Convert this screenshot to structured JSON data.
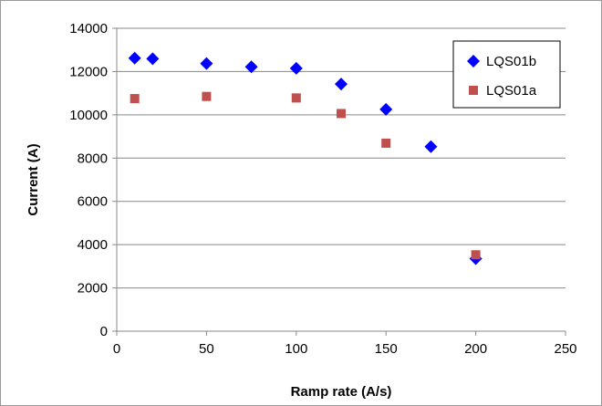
{
  "chart_data": {
    "type": "scatter",
    "title": "",
    "xlabel": "Ramp rate (A/s)",
    "ylabel": "Current (A)",
    "xlim": [
      0,
      250
    ],
    "ylim": [
      0,
      14000
    ],
    "xticks": [
      0,
      50,
      100,
      150,
      200,
      250
    ],
    "yticks": [
      0,
      2000,
      4000,
      6000,
      8000,
      10000,
      12000,
      14000
    ],
    "grid": "horizontal",
    "legend_position": "top-right",
    "series": [
      {
        "name": "LQS01b",
        "marker": "diamond",
        "color": "#0000ff",
        "points": [
          {
            "x": 10,
            "y": 12620
          },
          {
            "x": 20,
            "y": 12590
          },
          {
            "x": 50,
            "y": 12370
          },
          {
            "x": 75,
            "y": 12220
          },
          {
            "x": 100,
            "y": 12150
          },
          {
            "x": 125,
            "y": 11420
          },
          {
            "x": 150,
            "y": 10250
          },
          {
            "x": 175,
            "y": 8530
          },
          {
            "x": 200,
            "y": 3350
          }
        ]
      },
      {
        "name": "LQS01a",
        "marker": "square",
        "color": "#c0504d",
        "points": [
          {
            "x": 10,
            "y": 10750
          },
          {
            "x": 50,
            "y": 10850
          },
          {
            "x": 100,
            "y": 10780
          },
          {
            "x": 125,
            "y": 10060
          },
          {
            "x": 150,
            "y": 8690
          },
          {
            "x": 200,
            "y": 3530
          }
        ]
      }
    ]
  }
}
